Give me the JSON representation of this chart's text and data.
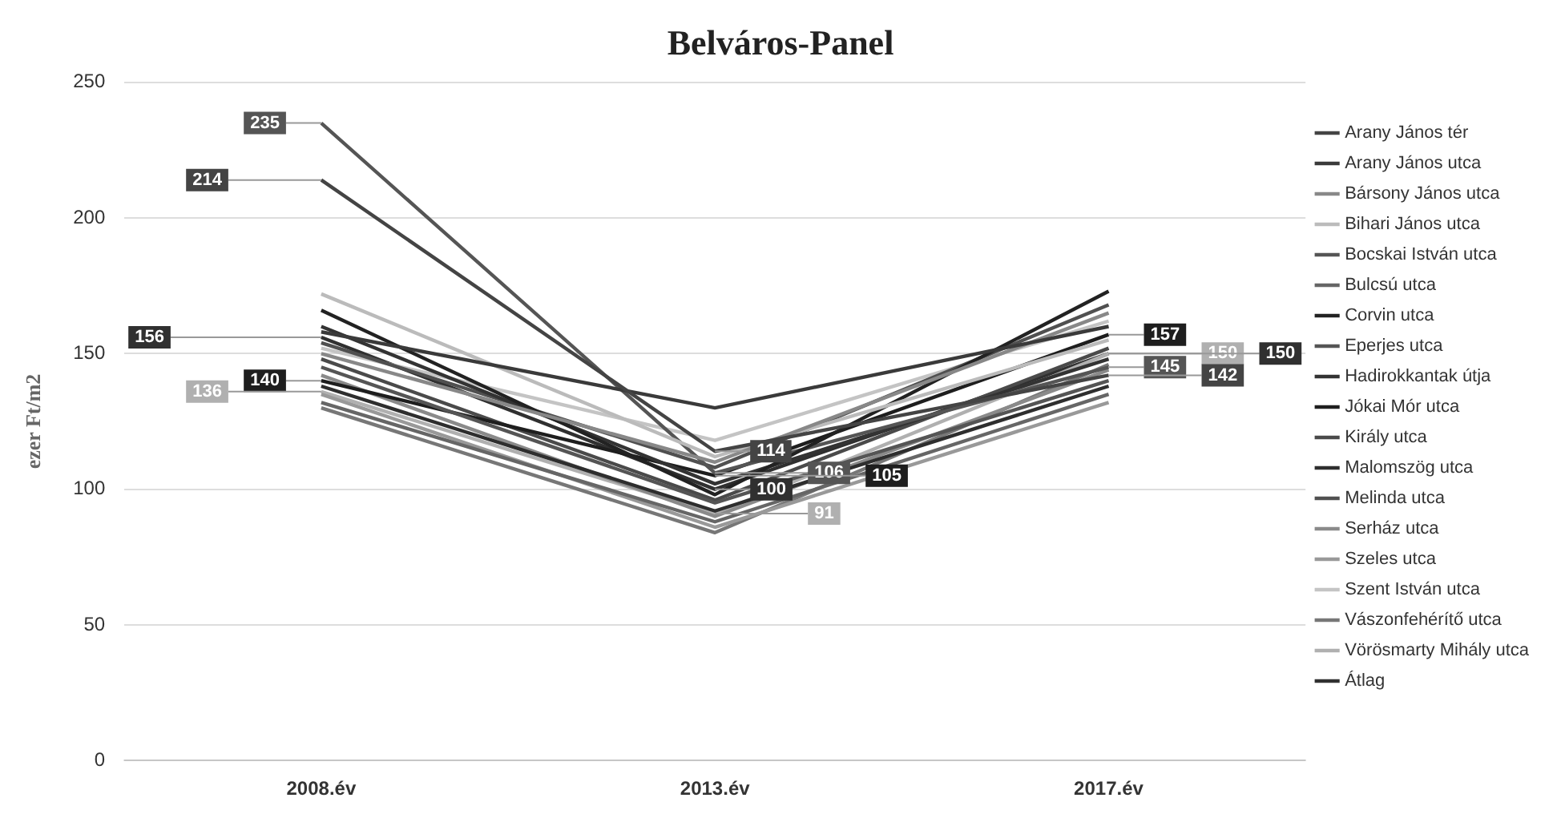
{
  "chart_data": {
    "type": "line",
    "title": "Belváros-Panel",
    "ylabel": "ezer Ft/m2",
    "categories": [
      "2008.év",
      "2013.év",
      "2017.év"
    ],
    "ylim": [
      0,
      250
    ],
    "yticks": [
      0,
      50,
      100,
      150,
      200,
      250
    ],
    "grid": "y",
    "legend": "right",
    "marker": "none",
    "line_style": "solid",
    "series": [
      {
        "name": "Arany János tér",
        "color": "#444444",
        "values": [
          214,
          114,
          142
        ],
        "value_labels": [
          "214",
          "114",
          "142"
        ]
      },
      {
        "name": "Arany János utca",
        "color": "#3a3a3a",
        "values": [
          158,
          130,
          160
        ]
      },
      {
        "name": "Bársony János utca",
        "color": "#888888",
        "values": [
          150,
          110,
          165
        ]
      },
      {
        "name": "Bihari János utca",
        "color": "#bbbbbb",
        "values": [
          172,
          112,
          155
        ]
      },
      {
        "name": "Bocskai István utca",
        "color": "#555555",
        "values": [
          145,
          95,
          140
        ]
      },
      {
        "name": "Bulcsú utca",
        "color": "#666666",
        "values": [
          132,
          88,
          135
        ]
      },
      {
        "name": "Corvin utca",
        "color": "#222222",
        "values": [
          166,
          98,
          173
        ]
      },
      {
        "name": "Eperjes utca",
        "color": "#555555",
        "values": [
          235,
          106,
          145
        ],
        "value_labels": [
          "235",
          "106",
          "145"
        ]
      },
      {
        "name": "Hadirokkantak útja",
        "color": "#333333",
        "values": [
          160,
          102,
          148
        ]
      },
      {
        "name": "Jókai Mór utca",
        "color": "#1e1e1e",
        "values": [
          140,
          105,
          157
        ],
        "value_labels": [
          "140",
          "105",
          "157"
        ]
      },
      {
        "name": "Király utca",
        "color": "#4a4a4a",
        "values": [
          148,
          96,
          152
        ]
      },
      {
        "name": "Malomszög utca",
        "color": "#2e2e2e",
        "values": [
          138,
          92,
          138
        ]
      },
      {
        "name": "Melinda utca",
        "color": "#505050",
        "values": [
          154,
          108,
          168
        ]
      },
      {
        "name": "Serház utca",
        "color": "#8a8a8a",
        "values": [
          142,
          90,
          144
        ]
      },
      {
        "name": "Szeles utca",
        "color": "#999999",
        "values": [
          135,
          86,
          132
        ]
      },
      {
        "name": "Szent István utca",
        "color": "#c4c4c4",
        "values": [
          152,
          118,
          162
        ]
      },
      {
        "name": "Vászonfehérítő utca",
        "color": "#777777",
        "values": [
          130,
          84,
          146
        ]
      },
      {
        "name": "Vörösmarty Mihály utca",
        "color": "#b0b0b0",
        "values": [
          136,
          91,
          150
        ],
        "value_labels": [
          "136",
          "91",
          "150"
        ]
      },
      {
        "name": "Átlag",
        "color": "#303030",
        "values": [
          156,
          100,
          150
        ],
        "value_labels": [
          "156",
          "100",
          "150"
        ]
      }
    ]
  }
}
